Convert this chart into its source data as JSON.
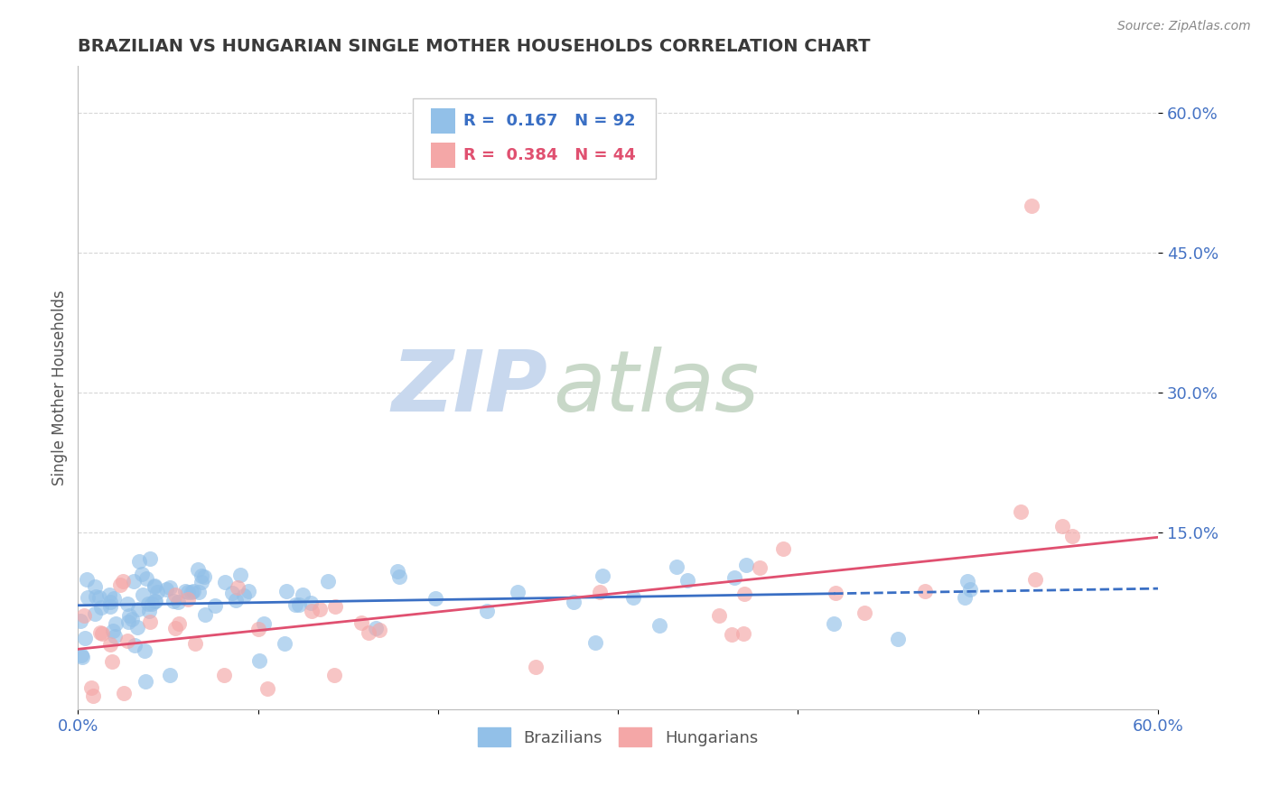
{
  "title": "BRAZILIAN VS HUNGARIAN SINGLE MOTHER HOUSEHOLDS CORRELATION CHART",
  "source_text": "Source: ZipAtlas.com",
  "ylabel": "Single Mother Households",
  "xlim": [
    0.0,
    0.6
  ],
  "ylim": [
    -0.04,
    0.65
  ],
  "ytick_positions": [
    0.15,
    0.3,
    0.45,
    0.6
  ],
  "ytick_labels": [
    "15.0%",
    "30.0%",
    "45.0%",
    "60.0%"
  ],
  "blue_color": "#92c0e8",
  "pink_color": "#f4a7a7",
  "blue_line_color": "#3a6fc4",
  "pink_line_color": "#e05070",
  "title_color": "#3a3a3a",
  "axis_label_color": "#4472c4",
  "tick_label_color": "#4472c4",
  "grid_color": "#cccccc",
  "watermark_color_zip": "#c8d8ee",
  "watermark_color_atlas": "#c8d8c8",
  "background_color": "#ffffff",
  "brazil_seed": 1234,
  "hungary_seed": 5678,
  "blue_trend_start_x": 0.0,
  "blue_trend_end_x": 0.42,
  "blue_trend_dash_start_x": 0.42,
  "blue_trend_dash_end_x": 0.6,
  "pink_trend_start_x": 0.0,
  "pink_trend_end_x": 0.6,
  "blue_intercept": 0.072,
  "blue_slope": 0.03,
  "pink_intercept": 0.025,
  "pink_slope": 0.2
}
